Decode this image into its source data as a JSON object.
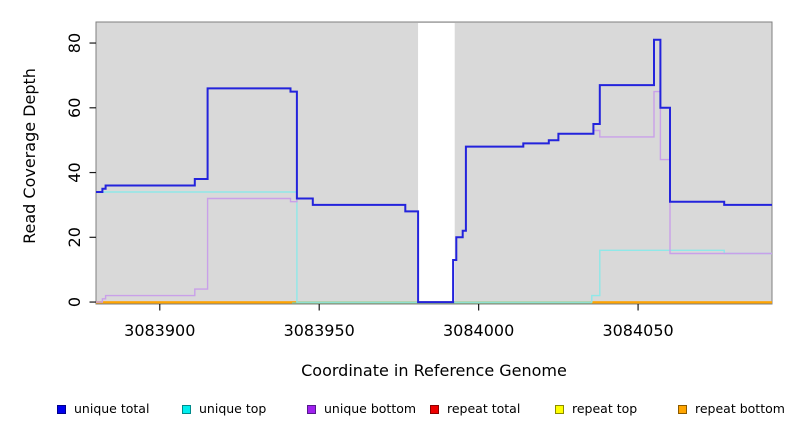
{
  "figure": {
    "background": "#ffffff",
    "plot_background": "#d9d9d9",
    "plot_border_color": "#7f7f7f",
    "tick_color": "#1a1a1a"
  },
  "chart_data": {
    "type": "line",
    "subtype": "step-post",
    "title": "",
    "xlabel": "Coordinate in Reference Genome",
    "ylabel": "Read Coverage Depth",
    "xlim": [
      3083880,
      3084092
    ],
    "ylim": [
      -0.6,
      86.5
    ],
    "x_ticks": [
      3083900,
      3083950,
      3084000,
      3084050
    ],
    "x_tick_labels": [
      "3083900",
      "3083950",
      "3084000",
      "3084050"
    ],
    "y_ticks": [
      0,
      20,
      40,
      60,
      80
    ],
    "y_tick_labels": [
      "0",
      "20",
      "40",
      "60",
      "80"
    ],
    "grid": false,
    "legend_position": "bottom",
    "gap_band": {
      "x_start": 3083981,
      "x_end": 3083992.5,
      "color": "#ffffff"
    },
    "baseline_segments": [
      {
        "x_start": 3083880,
        "x_end": 3083941.5,
        "color": "#ffa500"
      },
      {
        "x_start": 3083941.5,
        "x_end": 3084035.5,
        "color": "#8fcf8f"
      },
      {
        "x_start": 3084035.5,
        "x_end": 3084092,
        "color": "#ffa500"
      }
    ],
    "series": [
      {
        "name": "unique total",
        "color": "#2323dc",
        "width": 2,
        "steps": [
          [
            3083880,
            34
          ],
          [
            3083882,
            35
          ],
          [
            3083883,
            36
          ],
          [
            3083911,
            38
          ],
          [
            3083915,
            66
          ],
          [
            3083941,
            65
          ],
          [
            3083943,
            32
          ],
          [
            3083948,
            30
          ],
          [
            3083977,
            28
          ],
          [
            3083981,
            0
          ],
          [
            3083992,
            13
          ],
          [
            3083993,
            20
          ],
          [
            3083995,
            22
          ],
          [
            3083996,
            48
          ],
          [
            3084014,
            49
          ],
          [
            3084022,
            50
          ],
          [
            3084025,
            52
          ],
          [
            3084036,
            55
          ],
          [
            3084038,
            67
          ],
          [
            3084055,
            81
          ],
          [
            3084057,
            60
          ],
          [
            3084060,
            31
          ],
          [
            3084077,
            30
          ],
          [
            3084092,
            30
          ]
        ]
      },
      {
        "name": "unique top",
        "color": "#8fe8e8",
        "width": 1.4,
        "steps": [
          [
            3083880,
            34
          ],
          [
            3083943,
            0
          ],
          [
            3084035.5,
            2
          ],
          [
            3084038,
            16
          ],
          [
            3084077,
            15
          ],
          [
            3084092,
            15
          ]
        ]
      },
      {
        "name": "unique bottom",
        "color": "#c9a0e9",
        "width": 1.4,
        "steps": [
          [
            3083880,
            0
          ],
          [
            3083882,
            1
          ],
          [
            3083883,
            2
          ],
          [
            3083911,
            4
          ],
          [
            3083915,
            32
          ],
          [
            3083941,
            31
          ],
          [
            3083943,
            32
          ],
          [
            3083948,
            30
          ],
          [
            3083977,
            28
          ],
          [
            3083981,
            0
          ],
          [
            3083992,
            13
          ],
          [
            3083993,
            20
          ],
          [
            3083995,
            22
          ],
          [
            3083996,
            48
          ],
          [
            3084014,
            49
          ],
          [
            3084022,
            50
          ],
          [
            3084025,
            52
          ],
          [
            3084036,
            53
          ],
          [
            3084038,
            51
          ],
          [
            3084055,
            65
          ],
          [
            3084057,
            44
          ],
          [
            3084060,
            15
          ],
          [
            3084092,
            15
          ]
        ]
      },
      {
        "name": "repeat total",
        "color": "#ff0000",
        "width": 1.4,
        "steps": [
          [
            3083880,
            0
          ],
          [
            3084092,
            0
          ]
        ]
      },
      {
        "name": "repeat top",
        "color": "#ffff00",
        "width": 1.4,
        "steps": [
          [
            3083880,
            0
          ],
          [
            3084092,
            0
          ]
        ]
      },
      {
        "name": "repeat bottom",
        "color": "#ffa500",
        "width": 1.4,
        "steps": [
          [
            3083880,
            0
          ],
          [
            3084092,
            0
          ]
        ]
      }
    ]
  },
  "legend": {
    "items": [
      {
        "label": "unique total",
        "fill": "#0000ee",
        "border": "#00008b"
      },
      {
        "label": "unique top",
        "fill": "#00eeee",
        "border": "#008b8b"
      },
      {
        "label": "unique bottom",
        "fill": "#a020f0",
        "border": "#551a8b"
      },
      {
        "label": "repeat total",
        "fill": "#ee0000",
        "border": "#8b0000"
      },
      {
        "label": "repeat top",
        "fill": "#ffff00",
        "border": "#8b8b00"
      },
      {
        "label": "repeat bottom",
        "fill": "#ffa500",
        "border": "#8b5a00"
      }
    ]
  }
}
